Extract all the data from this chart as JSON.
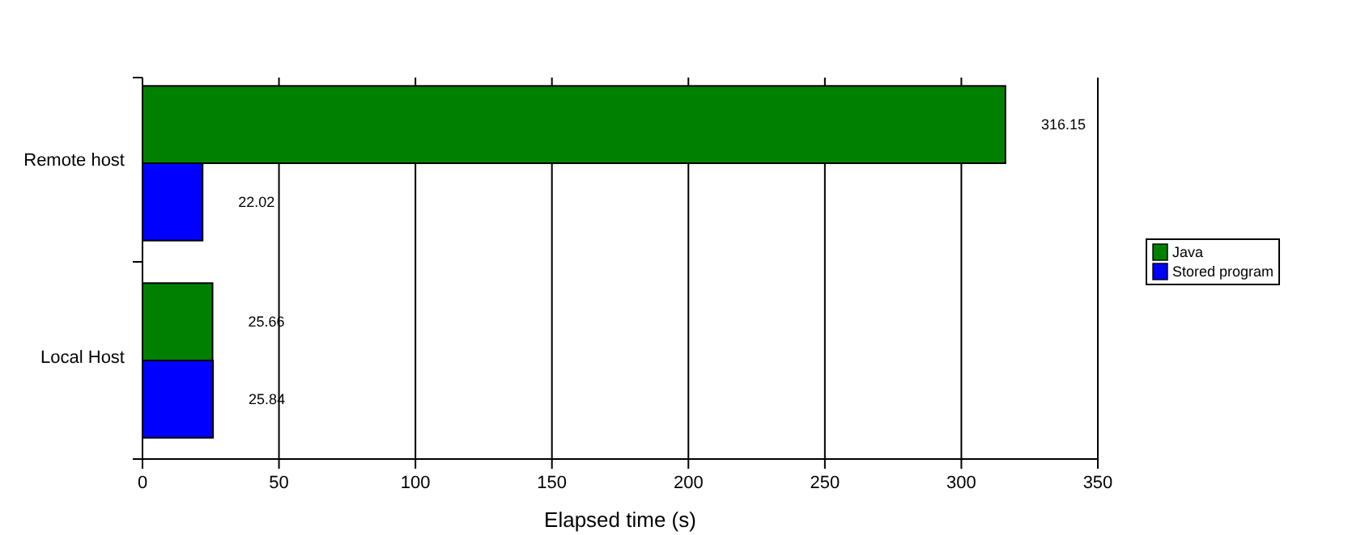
{
  "chart_data": {
    "type": "bar",
    "orientation": "horizontal",
    "xlabel": "Elapsed time (s)",
    "categories": [
      "Remote host",
      "Local Host"
    ],
    "series": [
      {
        "name": "Java",
        "color": "#008000",
        "values": [
          316.15,
          25.66
        ]
      },
      {
        "name": "Stored program",
        "color": "#0000ff",
        "values": [
          22.02,
          25.84
        ]
      }
    ],
    "xlim": [
      0,
      350
    ],
    "xticks": [
      0,
      50,
      100,
      150,
      200,
      250,
      300,
      350
    ],
    "grid": "x",
    "legend": "right",
    "data_labels": true
  }
}
